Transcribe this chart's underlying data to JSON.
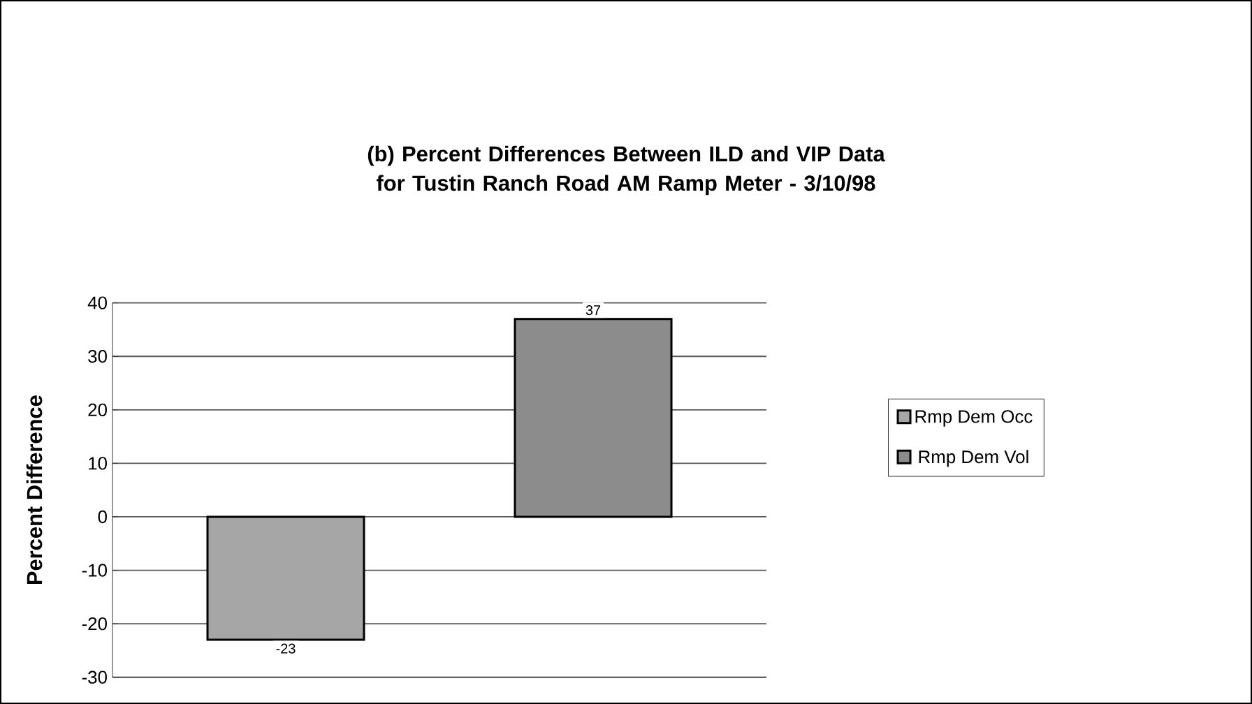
{
  "chart_data": {
    "type": "bar",
    "title": "(b) Percent Differences Between ILD and VIP Data for Tustin Ranch Road AM Ramp Meter - 3/10/98",
    "ylabel": "Percent Difference",
    "categories": [
      null
    ],
    "series": [
      {
        "name": "Rmp Dem Occ",
        "color": "#a6a6a6",
        "values": [
          -23
        ]
      },
      {
        "name": "Rmp Dem Vol",
        "color": "#8c8c8c",
        "values": [
          37
        ]
      }
    ],
    "ylim": [
      -30,
      40
    ],
    "yticks": [
      -30,
      -20,
      -10,
      0,
      10,
      20,
      30,
      40
    ],
    "grid": "y",
    "legend": "right",
    "data_labels": true
  }
}
